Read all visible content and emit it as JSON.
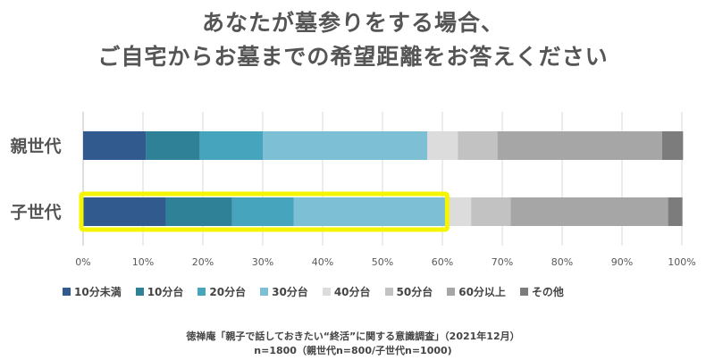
{
  "title_line1": "あなたが墓参りをする場合、",
  "title_line2": "ご自宅からお墓までの希望距離をお答えください",
  "source_line1": "徳禅庵「親子で話しておきたい“終活”に関する意識調査」（2021年12月）",
  "source_line2": "n=1800（親世代n=800/子世代n=1000)",
  "chart_data": {
    "type": "bar",
    "orientation": "horizontal",
    "stacked": true,
    "percent": true,
    "categories": [
      "親世代",
      "子世代"
    ],
    "highlight": {
      "category": "子世代",
      "from": 0,
      "to": 60.5,
      "color": "#f5f500"
    },
    "series": [
      {
        "name": "10分未満",
        "color": "#315b8e",
        "values": [
          10.5,
          13.8
        ]
      },
      {
        "name": "10分台",
        "color": "#2e8196",
        "values": [
          9.0,
          11.1
        ]
      },
      {
        "name": "20分台",
        "color": "#46a5bd",
        "values": [
          10.5,
          10.3
        ]
      },
      {
        "name": "30分台",
        "color": "#7dbfd4",
        "values": [
          27.5,
          25.3
        ]
      },
      {
        "name": "40分台",
        "color": "#dcdcdc",
        "values": [
          5.1,
          4.3
        ]
      },
      {
        "name": "50分台",
        "color": "#c2c2c2",
        "values": [
          6.6,
          6.6
        ]
      },
      {
        "name": "60分以上",
        "color": "#a6a6a6",
        "values": [
          27.5,
          26.3
        ]
      },
      {
        "name": "その他",
        "color": "#7c7c7c",
        "values": [
          3.5,
          2.4
        ]
      }
    ],
    "xlim": [
      0,
      100
    ],
    "xticks": [
      "0%",
      "10%",
      "20%",
      "30%",
      "40%",
      "50%",
      "60%",
      "70%",
      "80%",
      "90%",
      "100%"
    ],
    "grid": true,
    "legend_position": "bottom"
  }
}
